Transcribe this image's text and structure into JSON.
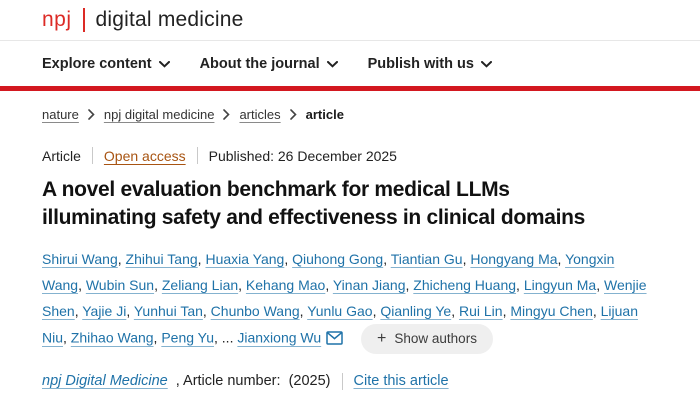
{
  "brand": {
    "logo_prefix": "npj",
    "logo_title": "digital medicine"
  },
  "nav": {
    "items": [
      "Explore content",
      "About the journal",
      "Publish with us"
    ]
  },
  "breadcrumb": {
    "links": [
      "nature",
      "npj digital medicine",
      "articles"
    ],
    "current": "article"
  },
  "meta": {
    "type": "Article",
    "access": "Open access",
    "published": "Published: 26 December 2025"
  },
  "article": {
    "title": "A novel evaluation benchmark for medical LLMs illuminating safety and effectiveness in clinical domains",
    "title_lines": [
      "A novel evaluation benchmark for medical LLMs",
      "illuminating safety and effectiveness in clinical domains"
    ]
  },
  "authors": {
    "names": [
      "Shirui Wang",
      "Zhihui Tang",
      "Huaxia Yang",
      "Qiuhong Gong",
      "Tiantian Gu",
      "Hongyang Ma",
      "Yongxin Wang",
      "Wubin Sun",
      "Zeliang Lian",
      "Kehang Mao",
      "Yinan Jiang",
      "Zhicheng Huang",
      "Lingyun Ma",
      "Wenjie Shen",
      "Yajie Ji",
      "Yunhui Tan",
      "Chunbo Wang",
      "Yunlu Gao",
      "Qianling Ye",
      "Rui Lin",
      "Mingyu Chen",
      "Lijuan Niu",
      "Zhihao Wang",
      "Peng Yu"
    ],
    "ellipsis": "...",
    "corresponding": "Jianxiong Wu",
    "email_icon": "envelope-icon",
    "plus": "+",
    "show_authors": "Show authors"
  },
  "citation": {
    "journal": "npj Digital Medicine",
    "text": " , Article number:  (2025)",
    "cite": "Cite this article"
  },
  "colors": {
    "brand_red": "#dc2a25",
    "rule_red": "#d31820",
    "link_blue": "#1f72a8",
    "open_access": "#a85412"
  }
}
